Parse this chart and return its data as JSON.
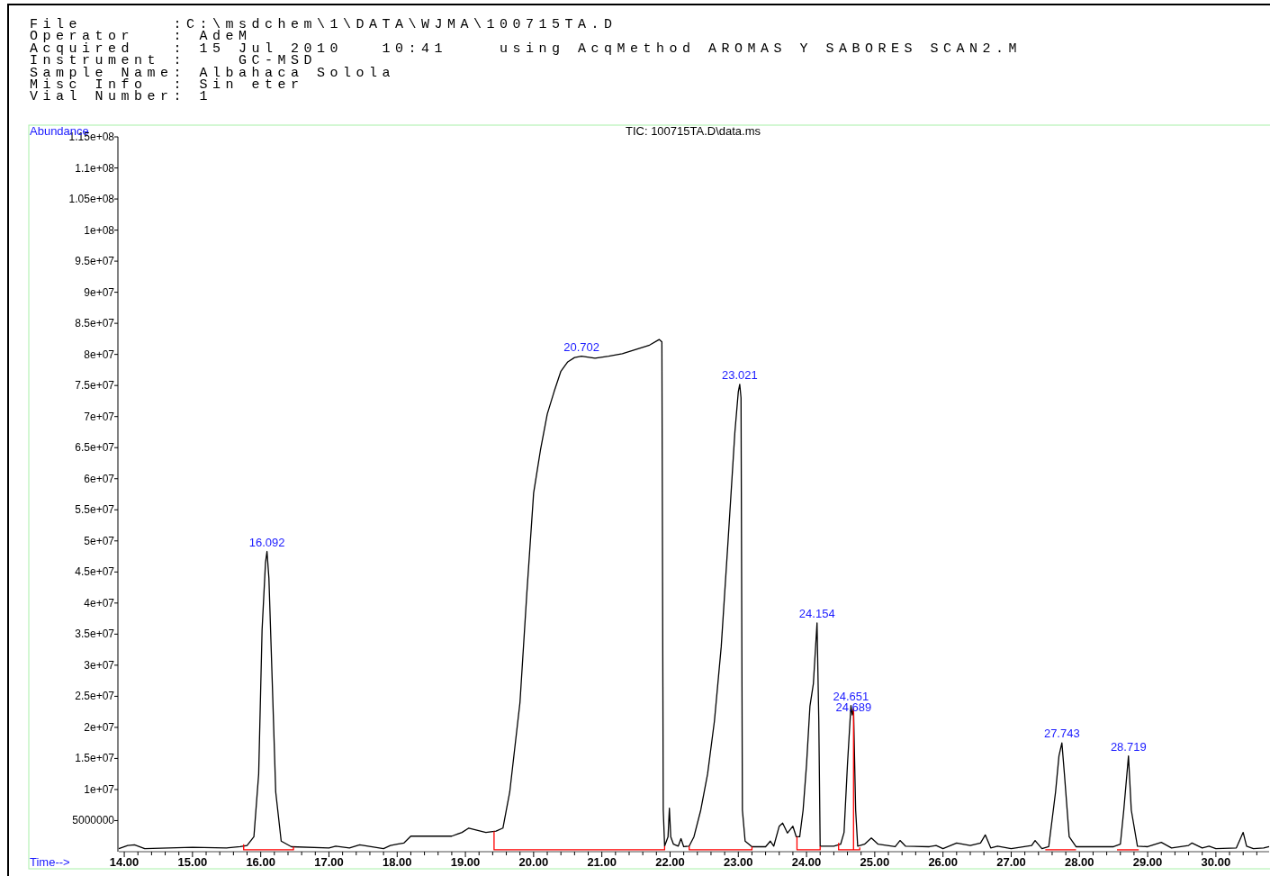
{
  "chart_data": {
    "type": "line",
    "title": "TIC: 100715TA.D\\data.ms",
    "xlabel": "Time-->",
    "ylabel": "Abundance",
    "annotations": [
      "File       :C:\\msdchem\\1\\DATA\\WJMA\\100715TA.D",
      "Operator   : AdeM",
      "Acquired   : 15 Jul 2010   10:41    using AcqMethod AROMAS Y SABORES SCAN2.M",
      "Instrument :    GC-MSD",
      "Sample Name: Albahaca Solola",
      "Misc Info  : Sin eter",
      "Vial Number: 1",
      {
        "text": "16.092",
        "x": 16.092,
        "y": 48300000
      },
      {
        "text": "20.702",
        "x": 20.702,
        "y": 79700000
      },
      {
        "text": "23.021",
        "x": 23.021,
        "y": 75200000
      },
      {
        "text": "24.154",
        "x": 24.154,
        "y": 36800000
      },
      {
        "text": "24.651",
        "x": 24.651,
        "y": 23500000
      },
      {
        "text": "24.689",
        "x": 24.689,
        "y": 23000000
      },
      {
        "text": "27.743",
        "x": 27.743,
        "y": 17500000
      },
      {
        "text": "28.719",
        "x": 28.719,
        "y": 15400000
      }
    ],
    "xlim": [
      13.92,
      30.78
    ],
    "xticks": [
      {
        "value": 14,
        "label": "14.00"
      },
      {
        "value": 14.2,
        "label": null
      },
      {
        "value": 14.4,
        "label": null
      },
      {
        "value": 14.6,
        "label": null
      },
      {
        "value": 14.8,
        "label": null
      },
      {
        "value": 15,
        "label": "15.00"
      },
      {
        "value": 15.2,
        "label": null
      },
      {
        "value": 15.4,
        "label": null
      },
      {
        "value": 15.6,
        "label": null
      },
      {
        "value": 15.8,
        "label": null
      },
      {
        "value": 16,
        "label": "16.00"
      },
      {
        "value": 16.2,
        "label": null
      },
      {
        "value": 16.4,
        "label": null
      },
      {
        "value": 16.6,
        "label": null
      },
      {
        "value": 16.8,
        "label": null
      },
      {
        "value": 17,
        "label": "17.00"
      },
      {
        "value": 17.2,
        "label": null
      },
      {
        "value": 17.4,
        "label": null
      },
      {
        "value": 17.6,
        "label": null
      },
      {
        "value": 17.8,
        "label": null
      },
      {
        "value": 18,
        "label": "18.00"
      },
      {
        "value": 18.2,
        "label": null
      },
      {
        "value": 18.4,
        "label": null
      },
      {
        "value": 18.6,
        "label": null
      },
      {
        "value": 18.8,
        "label": null
      },
      {
        "value": 19,
        "label": "19.00"
      },
      {
        "value": 19.2,
        "label": null
      },
      {
        "value": 19.4,
        "label": null
      },
      {
        "value": 19.6,
        "label": null
      },
      {
        "value": 19.8,
        "label": null
      },
      {
        "value": 20,
        "label": "20.00"
      },
      {
        "value": 20.2,
        "label": null
      },
      {
        "value": 20.4,
        "label": null
      },
      {
        "value": 20.6,
        "label": null
      },
      {
        "value": 20.8,
        "label": null
      },
      {
        "value": 21,
        "label": "21.00"
      },
      {
        "value": 21.2,
        "label": null
      },
      {
        "value": 21.4,
        "label": null
      },
      {
        "value": 21.6,
        "label": null
      },
      {
        "value": 21.8,
        "label": null
      },
      {
        "value": 22,
        "label": "22.00"
      },
      {
        "value": 22.2,
        "label": null
      },
      {
        "value": 22.4,
        "label": null
      },
      {
        "value": 22.6,
        "label": null
      },
      {
        "value": 22.8,
        "label": null
      },
      {
        "value": 23,
        "label": "23.00"
      },
      {
        "value": 23.2,
        "label": null
      },
      {
        "value": 23.4,
        "label": null
      },
      {
        "value": 23.6,
        "label": null
      },
      {
        "value": 23.8,
        "label": null
      },
      {
        "value": 24,
        "label": "24.00"
      },
      {
        "value": 24.2,
        "label": null
      },
      {
        "value": 24.4,
        "label": null
      },
      {
        "value": 24.6,
        "label": null
      },
      {
        "value": 24.8,
        "label": null
      },
      {
        "value": 25,
        "label": "25.00"
      },
      {
        "value": 25.2,
        "label": null
      },
      {
        "value": 25.4,
        "label": null
      },
      {
        "value": 25.6,
        "label": null
      },
      {
        "value": 25.8,
        "label": null
      },
      {
        "value": 26,
        "label": "26.00"
      },
      {
        "value": 26.2,
        "label": null
      },
      {
        "value": 26.4,
        "label": null
      },
      {
        "value": 26.6,
        "label": null
      },
      {
        "value": 26.8,
        "label": null
      },
      {
        "value": 27,
        "label": "27.00"
      },
      {
        "value": 27.2,
        "label": null
      },
      {
        "value": 27.4,
        "label": null
      },
      {
        "value": 27.6,
        "label": null
      },
      {
        "value": 27.8,
        "label": null
      },
      {
        "value": 28,
        "label": "28.00"
      },
      {
        "value": 28.2,
        "label": null
      },
      {
        "value": 28.4,
        "label": null
      },
      {
        "value": 28.6,
        "label": null
      },
      {
        "value": 28.8,
        "label": null
      },
      {
        "value": 29,
        "label": "29.00"
      },
      {
        "value": 29.2,
        "label": null
      },
      {
        "value": 29.4,
        "label": null
      },
      {
        "value": 29.6,
        "label": null
      },
      {
        "value": 29.8,
        "label": null
      },
      {
        "value": 30,
        "label": "30.00"
      },
      {
        "value": 30.2,
        "label": null
      },
      {
        "value": 30.4,
        "label": null
      },
      {
        "value": 30.6,
        "label": null
      }
    ],
    "ylim": [
      0,
      115000000
    ],
    "yticks": [
      {
        "value": 5000000,
        "label": "5000000"
      },
      {
        "value": 10000000,
        "label": "1e+07"
      },
      {
        "value": 15000000,
        "label": "1.5e+07"
      },
      {
        "value": 20000000,
        "label": "2e+07"
      },
      {
        "value": 25000000,
        "label": "2.5e+07"
      },
      {
        "value": 30000000,
        "label": "3e+07"
      },
      {
        "value": 35000000,
        "label": "3.5e+07"
      },
      {
        "value": 40000000,
        "label": "4e+07"
      },
      {
        "value": 45000000,
        "label": "4.5e+07"
      },
      {
        "value": 50000000,
        "label": "5e+07"
      },
      {
        "value": 55000000,
        "label": "5.5e+07"
      },
      {
        "value": 60000000,
        "label": "6e+07"
      },
      {
        "value": 65000000,
        "label": "6.5e+07"
      },
      {
        "value": 70000000,
        "label": "7e+07"
      },
      {
        "value": 75000000,
        "label": "7.5e+07"
      },
      {
        "value": 80000000,
        "label": "8e+07"
      },
      {
        "value": 85000000,
        "label": "8.5e+07"
      },
      {
        "value": 90000000,
        "label": "9e+07"
      },
      {
        "value": 95000000,
        "label": "9.5e+07"
      },
      {
        "value": 100000000,
        "label": "1e+08"
      },
      {
        "value": 105000000,
        "label": "1.05e+08"
      },
      {
        "value": 110000000,
        "label": "1.1e+08"
      },
      {
        "value": 115000000,
        "label": "1.15e+08"
      }
    ],
    "grid": false,
    "series": [
      {
        "color": "#000000",
        "x": [
          13.92,
          14.05,
          14.15,
          14.3,
          15.0,
          15.5,
          15.7,
          15.8,
          15.9,
          15.97,
          16.02,
          16.07,
          16.092,
          16.12,
          16.17,
          16.22,
          16.3,
          16.45,
          17.0,
          17.1,
          17.3,
          17.45,
          17.8,
          17.9,
          18.0,
          18.1,
          18.2,
          18.5,
          18.8,
          18.95,
          19.05,
          19.3,
          19.45,
          19.55,
          19.65,
          19.8,
          19.9,
          20.0,
          20.1,
          20.2,
          20.3,
          20.4,
          20.5,
          20.6,
          20.702,
          20.9,
          21.1,
          21.3,
          21.5,
          21.7,
          21.84,
          21.88,
          21.9,
          21.92,
          21.97,
          21.99,
          22.01,
          22.05,
          22.12,
          22.16,
          22.2,
          22.28,
          22.35,
          22.45,
          22.55,
          22.65,
          22.75,
          22.85,
          22.95,
          23.0,
          23.021,
          23.04,
          23.06,
          23.1,
          23.2,
          23.4,
          23.47,
          23.52,
          23.6,
          23.65,
          23.72,
          23.8,
          23.85,
          23.9,
          23.95,
          24.0,
          24.05,
          24.1,
          24.154,
          24.18,
          24.2,
          24.4,
          24.5,
          24.55,
          24.6,
          24.651,
          24.67,
          24.689,
          24.72,
          24.75,
          24.85,
          24.95,
          25.05,
          25.3,
          25.37,
          25.45,
          25.8,
          25.9,
          26.0,
          26.2,
          26.4,
          26.55,
          26.62,
          26.7,
          26.8,
          27.0,
          27.3,
          27.35,
          27.45,
          27.55,
          27.65,
          27.7,
          27.743,
          27.78,
          27.85,
          27.95,
          28.5,
          28.6,
          28.65,
          28.719,
          28.76,
          28.85,
          29.0,
          29.2,
          29.35,
          29.6,
          29.65,
          29.8,
          29.9,
          30.0,
          30.3,
          30.4,
          30.45,
          30.55,
          30.7,
          30.78
        ],
        "values": [
          500000,
          1000000,
          1100000,
          500000,
          700000,
          600000,
          800000,
          1000000,
          2400000,
          12500000,
          35700000,
          46500000,
          48300000,
          44000000,
          27000000,
          9600000,
          1700000,
          800000,
          600000,
          900000,
          600000,
          1100000,
          500000,
          1000000,
          1200000,
          1400000,
          2500000,
          2500000,
          2500000,
          3100000,
          3800000,
          3100000,
          3300000,
          3800000,
          9600000,
          24000000,
          41500000,
          57700000,
          64600000,
          70400000,
          74000000,
          77300000,
          78800000,
          79500000,
          79700000,
          79400000,
          79700000,
          80100000,
          80800000,
          81500000,
          82400000,
          82000000,
          6700000,
          900000,
          2400000,
          7000000,
          2400000,
          1200000,
          900000,
          2100000,
          800000,
          900000,
          2400000,
          6700000,
          12500000,
          21000000,
          33000000,
          50000000,
          67500000,
          74000000,
          75200000,
          73000000,
          6700000,
          1700000,
          800000,
          800000,
          1700000,
          900000,
          4100000,
          4600000,
          3000000,
          4100000,
          2400000,
          2400000,
          6700000,
          14000000,
          23400000,
          27000000,
          36800000,
          21000000,
          900000,
          900000,
          1200000,
          3100000,
          14000000,
          23500000,
          22000000,
          23000000,
          6700000,
          900000,
          1200000,
          2200000,
          1200000,
          800000,
          1800000,
          900000,
          800000,
          1000000,
          500000,
          1400000,
          1000000,
          1400000,
          2700000,
          600000,
          900000,
          500000,
          1000000,
          1800000,
          500000,
          800000,
          9600000,
          15400000,
          17500000,
          12500000,
          2400000,
          800000,
          800000,
          1200000,
          6700000,
          15400000,
          6700000,
          900000,
          800000,
          1500000,
          600000,
          1000000,
          1400000,
          600000,
          900000,
          500000,
          600000,
          3100000,
          900000,
          500000,
          600000,
          800000
        ]
      },
      {
        "color": "#ff0000",
        "x": [
          15.75,
          15.75,
          16.48,
          16.48
        ],
        "values": [
          1200000,
          300000,
          300000,
          800000
        ]
      },
      {
        "color": "#ff0000",
        "x": [
          19.42,
          19.42,
          21.92,
          21.92
        ],
        "values": [
          3300000,
          300000,
          300000,
          900000
        ]
      },
      {
        "color": "#ff0000",
        "x": [
          22.28,
          22.28,
          23.2,
          23.2
        ],
        "values": [
          900000,
          300000,
          300000,
          800000
        ]
      },
      {
        "color": "#ff0000",
        "x": [
          23.86,
          23.86,
          24.2,
          24.2
        ],
        "values": [
          2400000,
          300000,
          300000,
          900000
        ]
      },
      {
        "color": "#ff0000",
        "x": [
          24.47,
          24.47,
          24.78,
          24.78
        ],
        "values": [
          1400000,
          300000,
          300000,
          700000
        ]
      },
      {
        "color": "#ff0000",
        "x": [
          24.689,
          24.689
        ],
        "values": [
          300000,
          23000000
        ]
      },
      {
        "color": "#ff0000",
        "x": [
          27.5,
          27.95
        ],
        "values": [
          300000,
          300000
        ]
      },
      {
        "color": "#ff0000",
        "x": [
          28.55,
          28.87
        ],
        "values": [
          300000,
          300000
        ]
      }
    ]
  }
}
